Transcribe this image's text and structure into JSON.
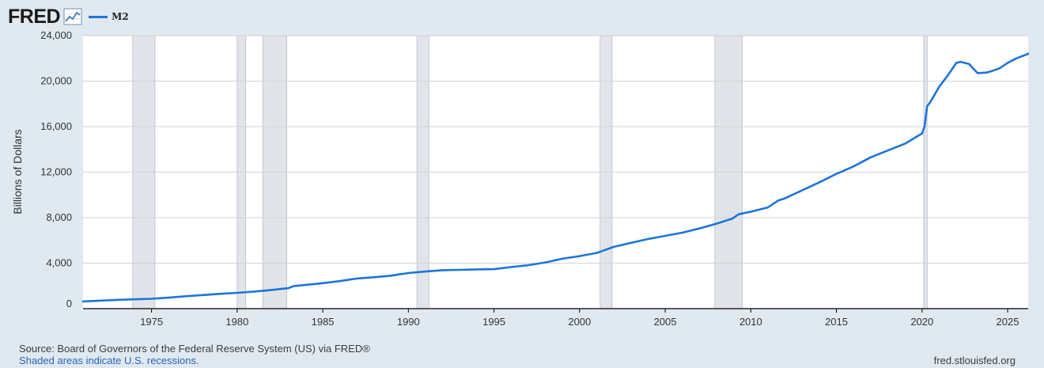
{
  "header": {
    "logo_text": "FRED",
    "legend_label": "M2",
    "series_color": "#1d74db"
  },
  "footer": {
    "source": "Source: Board of Governors of the Federal Reserve System (US) via FRED®",
    "recessions_note": "Shaded areas indicate U.S. recessions.",
    "site": "fred.stlouisfed.org"
  },
  "chart_data": {
    "type": "line",
    "title": "",
    "xlabel": "",
    "ylabel": "Billions of Dollars",
    "xlim": [
      1971.0,
      2026.2
    ],
    "ylim": [
      0,
      24000
    ],
    "grid": true,
    "x_ticks": [
      1975,
      1980,
      1985,
      1990,
      1995,
      2000,
      2005,
      2010,
      2015,
      2020,
      2025
    ],
    "x_tick_labels": [
      "1975",
      "1980",
      "1985",
      "1990",
      "1995",
      "2000",
      "2005",
      "2010",
      "2015",
      "2020",
      "2025"
    ],
    "y_ticks": [
      0,
      4000,
      8000,
      12000,
      16000,
      20000,
      24000
    ],
    "y_tick_labels": [
      "0",
      "4,000",
      "8,000",
      "12,000",
      "16,000",
      "20,000",
      "24,000"
    ],
    "recessions": [
      [
        1973.9,
        1975.2
      ],
      [
        1980.0,
        1980.5
      ],
      [
        1981.5,
        1982.9
      ],
      [
        1990.5,
        1991.2
      ],
      [
        2001.2,
        2001.9
      ],
      [
        2007.9,
        2009.5
      ],
      [
        2020.1,
        2020.3
      ]
    ],
    "series": [
      {
        "name": "M2",
        "color": "#1d74db",
        "points": [
          [
            1971.0,
            630
          ],
          [
            1972.0,
            700
          ],
          [
            1973.0,
            770
          ],
          [
            1974.0,
            820
          ],
          [
            1975.0,
            870
          ],
          [
            1976.0,
            970
          ],
          [
            1977.0,
            1090
          ],
          [
            1978.0,
            1200
          ],
          [
            1979.0,
            1300
          ],
          [
            1980.0,
            1390
          ],
          [
            1981.0,
            1500
          ],
          [
            1982.0,
            1640
          ],
          [
            1983.0,
            1800
          ],
          [
            1983.3,
            1990
          ],
          [
            1984.0,
            2080
          ],
          [
            1985.0,
            2240
          ],
          [
            1986.0,
            2420
          ],
          [
            1987.0,
            2650
          ],
          [
            1988.0,
            2760
          ],
          [
            1989.0,
            2900
          ],
          [
            1990.0,
            3130
          ],
          [
            1991.0,
            3260
          ],
          [
            1992.0,
            3380
          ],
          [
            1993.0,
            3410
          ],
          [
            1994.0,
            3450
          ],
          [
            1995.0,
            3470
          ],
          [
            1996.0,
            3650
          ],
          [
            1997.0,
            3820
          ],
          [
            1998.0,
            4060
          ],
          [
            1999.0,
            4390
          ],
          [
            2000.0,
            4620
          ],
          [
            2001.0,
            4900
          ],
          [
            2002.0,
            5430
          ],
          [
            2003.0,
            5780
          ],
          [
            2004.0,
            6120
          ],
          [
            2005.0,
            6400
          ],
          [
            2006.0,
            6680
          ],
          [
            2007.0,
            7050
          ],
          [
            2008.0,
            7470
          ],
          [
            2008.9,
            7900
          ],
          [
            2009.3,
            8300
          ],
          [
            2010.0,
            8520
          ],
          [
            2011.0,
            8900
          ],
          [
            2011.6,
            9500
          ],
          [
            2012.0,
            9700
          ],
          [
            2013.0,
            10400
          ],
          [
            2014.0,
            11100
          ],
          [
            2015.0,
            11850
          ],
          [
            2016.0,
            12500
          ],
          [
            2017.0,
            13300
          ],
          [
            2018.0,
            13900
          ],
          [
            2019.0,
            14500
          ],
          [
            2020.0,
            15400
          ],
          [
            2020.15,
            16000
          ],
          [
            2020.3,
            17800
          ],
          [
            2020.5,
            18200
          ],
          [
            2021.0,
            19500
          ],
          [
            2021.5,
            20500
          ],
          [
            2022.0,
            21600
          ],
          [
            2022.25,
            21700
          ],
          [
            2022.75,
            21500
          ],
          [
            2023.0,
            21100
          ],
          [
            2023.25,
            20700
          ],
          [
            2023.75,
            20750
          ],
          [
            2024.0,
            20850
          ],
          [
            2024.5,
            21100
          ],
          [
            2025.0,
            21600
          ],
          [
            2025.5,
            22000
          ],
          [
            2026.2,
            22400
          ]
        ]
      }
    ]
  }
}
